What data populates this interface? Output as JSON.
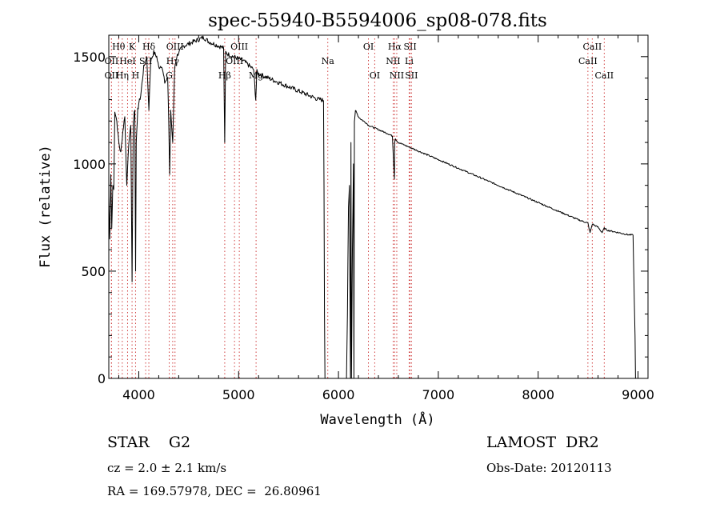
{
  "chart_data": {
    "type": "line",
    "title": "spec-55940-B5594006_sp08-078.fits",
    "xlabel": "Wavelength (Å)",
    "ylabel": "Flux (relative)",
    "xlim": [
      3700,
      9100
    ],
    "ylim": [
      0,
      1600
    ],
    "xticks": [
      4000,
      5000,
      6000,
      7000,
      8000,
      9000
    ],
    "yticks": [
      0,
      500,
      1000,
      1500
    ],
    "grid": false,
    "series": [
      {
        "values_note": "",
        "x": [
          3700,
          3710,
          3720,
          3730,
          3740,
          3750,
          3760,
          3780,
          3800,
          3820,
          3840,
          3860,
          3880,
          3900,
          3920,
          3933,
          3945,
          3960,
          3968,
          3975,
          3990,
          4000,
          4020,
          4050,
          4080,
          4101,
          4120,
          4150,
          4180,
          4200,
          4230,
          4260,
          4290,
          4300,
          4310,
          4320,
          4340,
          4360,
          4380,
          4400,
          4450,
          4500,
          4550,
          4600,
          4650,
          4700,
          4750,
          4800,
          4850,
          4861,
          4870,
          4900,
          4950,
          5000,
          5050,
          5100,
          5150,
          5172,
          5183,
          5200,
          5250,
          5300,
          5350,
          5400,
          5450,
          5500,
          5550,
          5600,
          5650,
          5700,
          5750,
          5800,
          5820,
          5850,
          5855,
          5860,
          5865,
          5870,
          5875,
          5880,
          5890,
          5900,
          5950,
          6000,
          6050,
          6080,
          6090,
          6100,
          6110,
          6120,
          6125,
          6130,
          6140,
          6150,
          6155,
          6160,
          6170,
          6180,
          6190,
          6200,
          6220,
          6250,
          6280,
          6300,
          6350,
          6400,
          6450,
          6500,
          6540,
          6560,
          6563,
          6570,
          6580,
          6600,
          6650,
          6700,
          6750,
          6800,
          6850,
          6900,
          6950,
          7000,
          7050,
          7100,
          7150,
          7200,
          7250,
          7300,
          7350,
          7400,
          7450,
          7500,
          7550,
          7600,
          7650,
          7700,
          7750,
          7800,
          7850,
          7900,
          7950,
          8000,
          8050,
          8100,
          8150,
          8200,
          8250,
          8300,
          8350,
          8400,
          8450,
          8498,
          8520,
          8542,
          8560,
          8580,
          8600,
          8640,
          8662,
          8680,
          8700,
          8750,
          8800,
          8850,
          8900,
          8950,
          8970,
          8975,
          8980,
          8985,
          9000
        ],
        "y": [
          850,
          650,
          950,
          700,
          900,
          880,
          1250,
          1200,
          1100,
          1050,
          1150,
          1220,
          900,
          1100,
          1180,
          450,
          1200,
          1250,
          500,
          1100,
          1250,
          1280,
          1320,
          1450,
          1500,
          1250,
          1480,
          1520,
          1500,
          1450,
          1460,
          1380,
          1400,
          1200,
          950,
          1250,
          1100,
          1450,
          1500,
          1520,
          1550,
          1560,
          1570,
          1580,
          1590,
          1570,
          1560,
          1550,
          1540,
          1100,
          1520,
          1510,
          1500,
          1490,
          1480,
          1460,
          1440,
          1300,
          1430,
          1420,
          1410,
          1400,
          1390,
          1380,
          1370,
          1360,
          1350,
          1340,
          1330,
          1320,
          1310,
          1300,
          1300,
          1295,
          900,
          300,
          0,
          0,
          0,
          0,
          0,
          0,
          0,
          0,
          0,
          0,
          300,
          800,
          900,
          0,
          1100,
          0,
          600,
          1000,
          0,
          1200,
          1250,
          1240,
          1230,
          1220,
          1210,
          1200,
          1190,
          1180,
          1170,
          1160,
          1150,
          1140,
          1130,
          930,
          1100,
          1120,
          1110,
          1100,
          1090,
          1080,
          1070,
          1060,
          1050,
          1040,
          1030,
          1020,
          1010,
          1000,
          990,
          980,
          970,
          960,
          950,
          940,
          930,
          920,
          910,
          900,
          890,
          880,
          870,
          860,
          850,
          840,
          830,
          820,
          810,
          800,
          790,
          780,
          770,
          760,
          750,
          740,
          732,
          724,
          680,
          720,
          715,
          710,
          705,
          680,
          700,
          695,
          690,
          685,
          680,
          675,
          670,
          668,
          200,
          0,
          0,
          0,
          0
        ]
      }
    ],
    "line_markers": [
      {
        "label": "Hθ",
        "wl": 3798,
        "row": 1
      },
      {
        "label": "OII",
        "wl": 3727,
        "row": 2
      },
      {
        "label": "OII",
        "wl": 3727,
        "row": 3
      },
      {
        "label": "K",
        "wl": 3933,
        "row": 1
      },
      {
        "label": "HeI",
        "wl": 3888,
        "row": 2
      },
      {
        "label": "Hη",
        "wl": 3835,
        "row": 3
      },
      {
        "label": "SII",
        "wl": 4069,
        "row": 2
      },
      {
        "label": "H",
        "wl": 3968,
        "row": 3
      },
      {
        "label": "Hδ",
        "wl": 4101,
        "row": 1
      },
      {
        "label": "OIII",
        "wl": 4363,
        "row": 1
      },
      {
        "label": "Hγ",
        "wl": 4340,
        "row": 2
      },
      {
        "label": "G",
        "wl": 4305,
        "row": 3
      },
      {
        "label": "OIII",
        "wl": 5007,
        "row": 1
      },
      {
        "label": "OIII",
        "wl": 4959,
        "row": 2
      },
      {
        "label": "Hβ",
        "wl": 4861,
        "row": 3
      },
      {
        "label": "Mg",
        "wl": 5175,
        "row": 3
      },
      {
        "label": "Na",
        "wl": 5893,
        "row": 2
      },
      {
        "label": "OI",
        "wl": 6300,
        "row": 1
      },
      {
        "label": "OI",
        "wl": 6363,
        "row": 3
      },
      {
        "label": "Hα",
        "wl": 6563,
        "row": 1
      },
      {
        "label": "SII",
        "wl": 6717,
        "row": 1
      },
      {
        "label": "NII",
        "wl": 6548,
        "row": 2
      },
      {
        "label": "Li",
        "wl": 6708,
        "row": 2
      },
      {
        "label": "NII",
        "wl": 6584,
        "row": 3
      },
      {
        "label": "SII",
        "wl": 6731,
        "row": 3
      },
      {
        "label": "CaII",
        "wl": 8542,
        "row": 1
      },
      {
        "label": "CaII",
        "wl": 8498,
        "row": 2
      },
      {
        "label": "CaII",
        "wl": 8662,
        "row": 3
      }
    ]
  },
  "info": {
    "object_class": "STAR    G2",
    "survey": "LAMOST  DR2",
    "cz": "cz = 2.0 ± 2.1 km/s",
    "obs_date": "Obs-Date: 20120113",
    "radec": "RA = 169.57978, DEC =  26.80961"
  }
}
